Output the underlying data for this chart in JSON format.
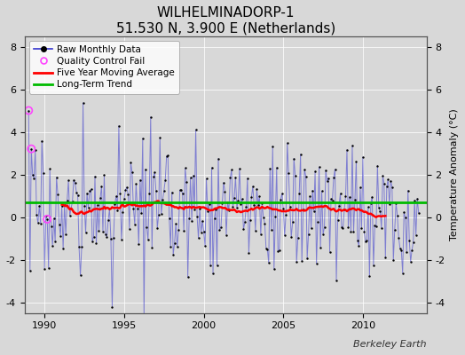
{
  "title": "WILHELMINADORP-1",
  "subtitle": "51.530 N, 3.900 E (Netherlands)",
  "ylabel": "Temperature Anomaly (°C)",
  "watermark": "Berkeley Earth",
  "xlim": [
    1988.75,
    2014.0
  ],
  "ylim": [
    -4.5,
    8.5
  ],
  "yticks": [
    -4,
    -2,
    0,
    2,
    4,
    6,
    8
  ],
  "xticks": [
    1990,
    1995,
    2000,
    2005,
    2010
  ],
  "bg_color": "#d8d8d8",
  "plot_bg_color": "#d8d8d8",
  "raw_color": "#3333cc",
  "raw_alpha": 0.55,
  "raw_lw": 0.7,
  "dot_color": "#000000",
  "dot_size": 3,
  "qc_color": "#ff44ff",
  "qc_size": 35,
  "moving_avg_color": "#ff0000",
  "moving_avg_lw": 1.8,
  "trend_color": "#00bb00",
  "trend_lw": 2.0,
  "trend_value": 0.68,
  "figsize": [
    5.24,
    4.0
  ],
  "dpi": 100,
  "title_fontsize": 11,
  "subtitle_fontsize": 9,
  "legend_fontsize": 7.5,
  "tick_fontsize": 8,
  "ylabel_fontsize": 8,
  "seed": 17,
  "n_months": 295,
  "start_year": 1989,
  "start_month": 1,
  "qc_indices": [
    0,
    2,
    14
  ]
}
